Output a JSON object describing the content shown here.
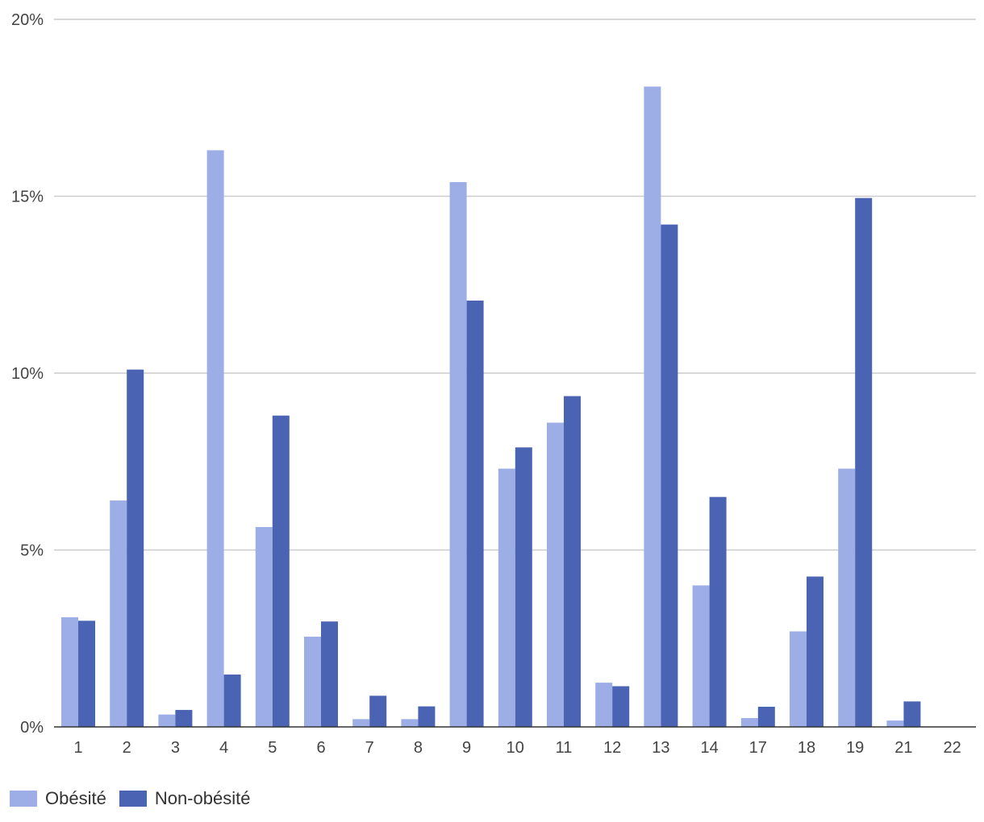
{
  "chart_data": {
    "type": "bar",
    "title": "",
    "xlabel": "",
    "ylabel": "",
    "categories": [
      "1",
      "2",
      "3",
      "4",
      "5",
      "6",
      "7",
      "8",
      "9",
      "10",
      "11",
      "12",
      "13",
      "14",
      "17",
      "18",
      "19",
      "21",
      "22"
    ],
    "series": [
      {
        "name": "Obésité",
        "color": "#9daee6",
        "values": [
          3.1,
          6.4,
          0.35,
          16.3,
          5.65,
          2.55,
          0.22,
          0.22,
          15.4,
          7.3,
          8.6,
          1.25,
          18.1,
          4.0,
          0.25,
          2.7,
          7.3,
          0.18,
          0
        ]
      },
      {
        "name": "Non-obésité",
        "color": "#4a63b3",
        "values": [
          3.0,
          10.1,
          0.48,
          1.48,
          8.8,
          2.98,
          0.88,
          0.58,
          12.05,
          7.9,
          9.35,
          1.15,
          14.2,
          6.5,
          0.57,
          4.25,
          14.95,
          0.72,
          0
        ]
      }
    ],
    "ylim": [
      0,
      20
    ],
    "yticks": [
      "0%",
      "5%",
      "10%",
      "15%",
      "20%"
    ],
    "ytick_values": [
      0,
      5,
      10,
      15,
      20
    ],
    "grid": true,
    "legend_position": "bottom-left"
  }
}
